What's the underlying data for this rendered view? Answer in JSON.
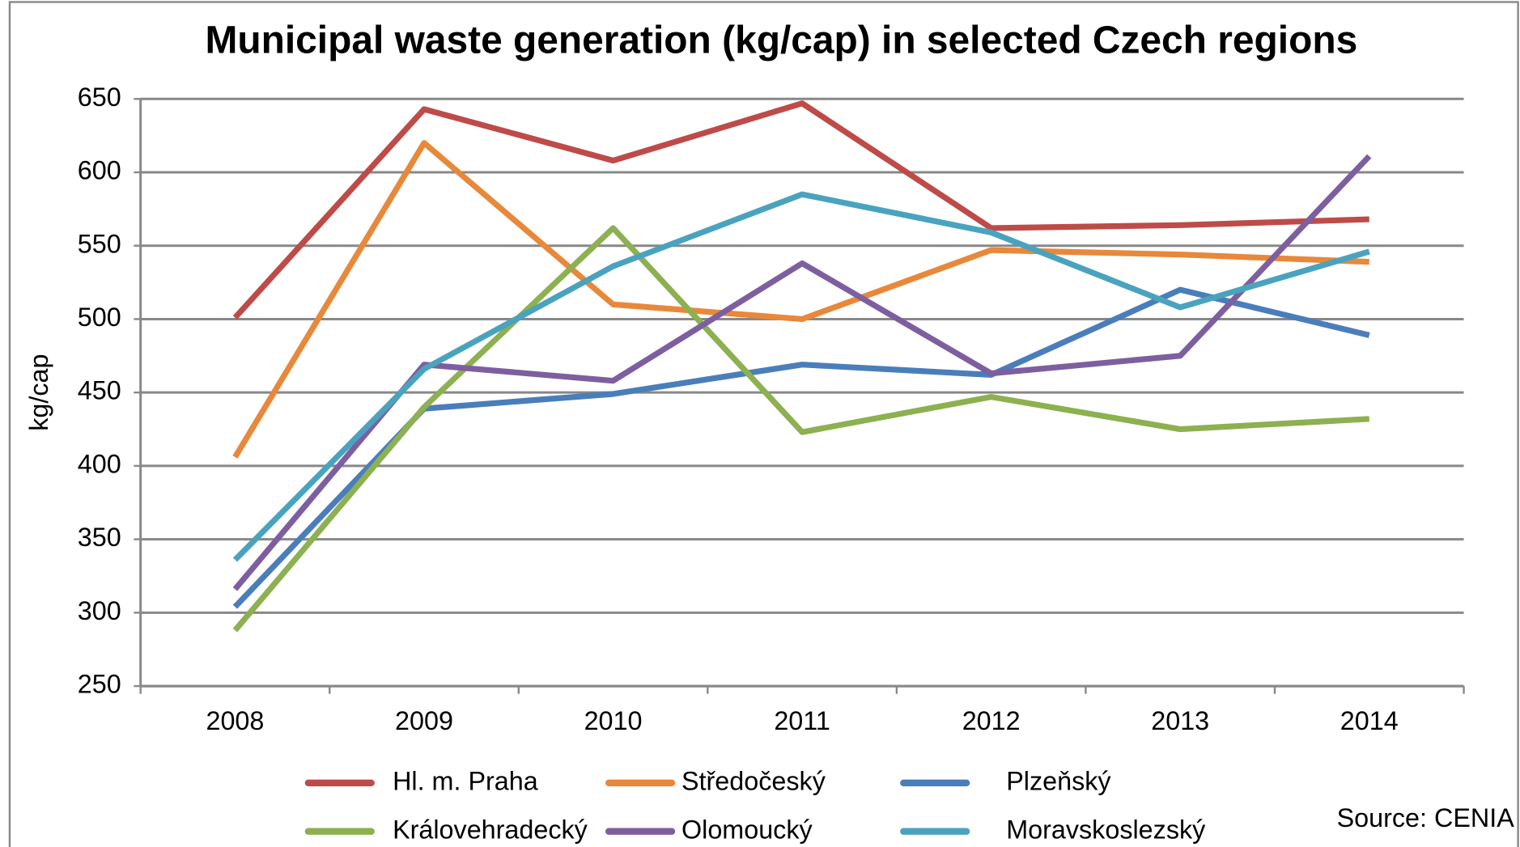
{
  "chart_data": {
    "type": "line",
    "title": "Municipal waste generation (kg/cap) in selected Czech regions",
    "y_label": "kg/cap",
    "source": "Source: CENIA",
    "categories": [
      "2008",
      "2009",
      "2010",
      "2011",
      "2012",
      "2013",
      "2014"
    ],
    "series": [
      {
        "name": "Hl. m. Praha",
        "color": "#be4b48",
        "values": [
          501,
          643,
          608,
          647,
          562,
          564,
          568
        ]
      },
      {
        "name": "Středočeský",
        "color": "#e8883a",
        "values": [
          406,
          620,
          510,
          500,
          547,
          544,
          539
        ]
      },
      {
        "name": "Plzeňský",
        "color": "#4a7ebb",
        "values": [
          304,
          439,
          449,
          469,
          462,
          520,
          489
        ]
      },
      {
        "name": "Královehradecký",
        "color": "#8db050",
        "values": [
          288,
          440,
          562,
          423,
          447,
          425,
          432
        ]
      },
      {
        "name": "Olomoucký",
        "color": "#7d5fa0",
        "values": [
          316,
          469,
          458,
          538,
          463,
          475,
          611
        ]
      },
      {
        "name": "Moravskoslezský",
        "color": "#4aa3be",
        "values": [
          336,
          466,
          536,
          585,
          559,
          508,
          546
        ]
      }
    ],
    "ylim": [
      250,
      650
    ],
    "yticks": [
      250,
      300,
      350,
      400,
      450,
      500,
      550,
      600,
      650
    ],
    "grid": true
  }
}
